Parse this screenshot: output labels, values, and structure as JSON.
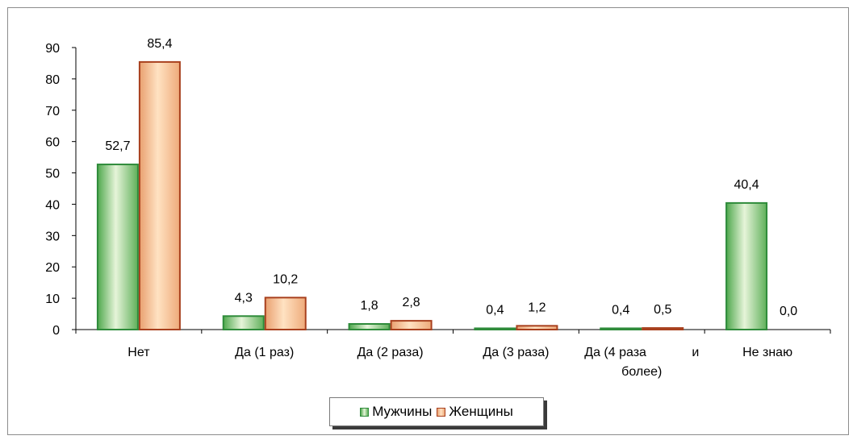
{
  "chart_data": {
    "type": "bar",
    "categories": [
      "Нет",
      "Да (1 раз)",
      "Да (2 раза)",
      "Да (3 раза)",
      "Да (4 раза и более)",
      "Не знаю"
    ],
    "category_lines": [
      [
        "Нет"
      ],
      [
        "Да (1 раз)"
      ],
      [
        "Да (2 раза)"
      ],
      [
        "Да (3 раза)"
      ],
      [
        "Да (4 раза",
        "и",
        "более)"
      ],
      [
        "Не знаю"
      ]
    ],
    "series": [
      {
        "name": "Мужчины",
        "values": [
          52.7,
          4.3,
          1.8,
          0.4,
          0.4,
          40.4
        ],
        "labels": [
          "52,7",
          "4,3",
          "1,8",
          "0,4",
          "0,4",
          "40,4"
        ],
        "color": "#2e8b3a",
        "fill_light": "#e6f4d9",
        "fill_dark": "#4fa84d"
      },
      {
        "name": "Женщины",
        "values": [
          85.4,
          10.2,
          2.8,
          1.2,
          0.5,
          0.0
        ],
        "labels": [
          "85,4",
          "10,2",
          "2,8",
          "1,2",
          "0,5",
          "0,0"
        ],
        "color": "#a8401e",
        "fill_light": "#ffe2c2",
        "fill_dark": "#e9a070"
      }
    ],
    "yticks": [
      0,
      10,
      20,
      30,
      40,
      50,
      60,
      70,
      80,
      90
    ],
    "ylim": [
      0,
      90
    ],
    "legend_position": "bottom",
    "grid": false
  }
}
